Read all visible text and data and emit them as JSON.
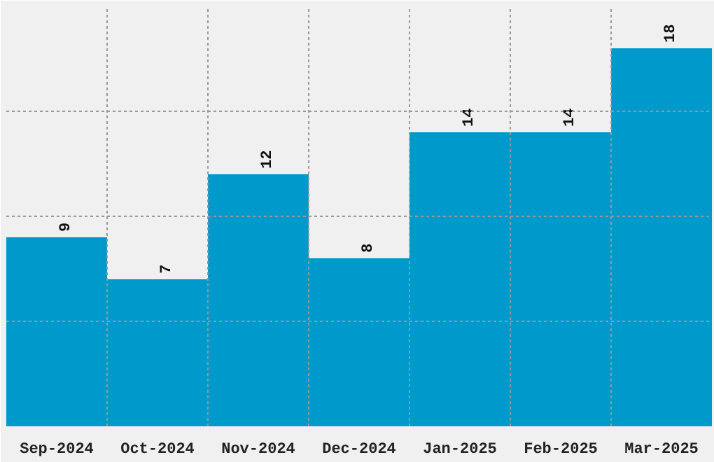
{
  "chart_data": {
    "type": "bar",
    "categories": [
      "Sep-2024",
      "Oct-2024",
      "Nov-2024",
      "Dec-2024",
      "Jan-2025",
      "Feb-2025",
      "Mar-2025"
    ],
    "values": [
      9,
      7,
      12,
      8,
      14,
      14,
      18
    ],
    "color": "#0099cc",
    "ylim": [
      0,
      20
    ],
    "grid": true,
    "tick_labels": "x",
    "data_labels": true
  }
}
